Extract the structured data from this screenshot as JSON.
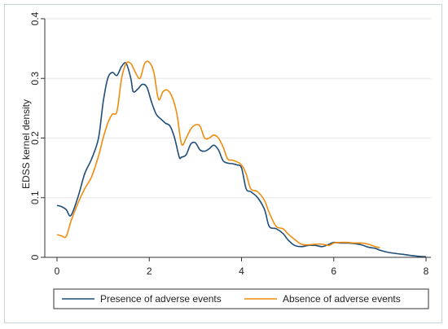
{
  "chart_data": {
    "type": "line",
    "title": "",
    "xlabel": "",
    "ylabel": "EDSS kernel density",
    "xlim": [
      0,
      8
    ],
    "ylim": [
      0,
      0.4
    ],
    "x_ticks": [
      0,
      2,
      4,
      6,
      8
    ],
    "y_ticks": [
      0,
      0.1,
      0.2,
      0.3,
      0.4
    ],
    "x_tick_labels": [
      "0",
      "2",
      "4",
      "6",
      "8"
    ],
    "y_tick_labels": [
      "0",
      "0.1",
      "0.2",
      "0.3",
      "0.4"
    ],
    "grid": "horizontal",
    "legend_position": "bottom",
    "series": [
      {
        "name": "Presence of adverse events",
        "color": "#1f4e79",
        "x": [
          0,
          0.1,
          0.2,
          0.3,
          0.45,
          0.6,
          0.75,
          0.9,
          1.0,
          1.1,
          1.2,
          1.3,
          1.4,
          1.5,
          1.6,
          1.65,
          1.75,
          1.85,
          1.95,
          2.05,
          2.15,
          2.25,
          2.35,
          2.45,
          2.55,
          2.65,
          2.7,
          2.8,
          2.9,
          3.0,
          3.1,
          3.2,
          3.3,
          3.4,
          3.5,
          3.6,
          3.7,
          3.8,
          3.9,
          4.0,
          4.1,
          4.2,
          4.35,
          4.5,
          4.6,
          4.75,
          4.9,
          5.0,
          5.15,
          5.3,
          5.45,
          5.6,
          5.75,
          5.9,
          6.0,
          6.15,
          6.3,
          6.45,
          6.6,
          6.75,
          6.9,
          7.0,
          7.2,
          7.5,
          7.8,
          8.0
        ],
        "values": [
          0.087,
          0.085,
          0.08,
          0.07,
          0.1,
          0.14,
          0.165,
          0.2,
          0.26,
          0.3,
          0.31,
          0.305,
          0.32,
          0.325,
          0.3,
          0.278,
          0.282,
          0.29,
          0.285,
          0.26,
          0.24,
          0.232,
          0.225,
          0.22,
          0.2,
          0.168,
          0.168,
          0.172,
          0.19,
          0.192,
          0.18,
          0.178,
          0.182,
          0.188,
          0.18,
          0.162,
          0.158,
          0.157,
          0.155,
          0.15,
          0.115,
          0.11,
          0.1,
          0.08,
          0.052,
          0.048,
          0.04,
          0.03,
          0.02,
          0.018,
          0.02,
          0.02,
          0.018,
          0.022,
          0.025,
          0.024,
          0.024,
          0.023,
          0.021,
          0.017,
          0.015,
          0.012,
          0.008,
          0.005,
          0.002,
          0.001
        ]
      },
      {
        "name": "Absence of adverse events",
        "color": "#f28c0f",
        "x": [
          0,
          0.1,
          0.2,
          0.3,
          0.45,
          0.6,
          0.75,
          0.9,
          1.0,
          1.1,
          1.2,
          1.3,
          1.4,
          1.5,
          1.6,
          1.7,
          1.8,
          1.9,
          2.0,
          2.1,
          2.2,
          2.3,
          2.4,
          2.5,
          2.6,
          2.7,
          2.8,
          2.9,
          3.0,
          3.1,
          3.2,
          3.3,
          3.4,
          3.5,
          3.6,
          3.7,
          3.8,
          3.9,
          4.0,
          4.1,
          4.2,
          4.35,
          4.5,
          4.6,
          4.75,
          4.9,
          5.0,
          5.15,
          5.3,
          5.45,
          5.6,
          5.75,
          5.9,
          6.0,
          6.15,
          6.3,
          6.45,
          6.6,
          6.75,
          6.9,
          7.0
        ],
        "values": [
          0.038,
          0.036,
          0.035,
          0.06,
          0.09,
          0.115,
          0.135,
          0.17,
          0.2,
          0.225,
          0.24,
          0.245,
          0.3,
          0.325,
          0.325,
          0.31,
          0.3,
          0.325,
          0.327,
          0.31,
          0.265,
          0.278,
          0.28,
          0.268,
          0.24,
          0.19,
          0.2,
          0.215,
          0.222,
          0.22,
          0.2,
          0.2,
          0.205,
          0.2,
          0.185,
          0.165,
          0.163,
          0.16,
          0.155,
          0.14,
          0.115,
          0.11,
          0.095,
          0.075,
          0.052,
          0.048,
          0.04,
          0.03,
          0.022,
          0.021,
          0.022,
          0.022,
          0.02,
          0.024,
          0.025,
          0.025,
          0.024,
          0.024,
          0.022,
          0.018,
          0.016
        ]
      }
    ]
  }
}
